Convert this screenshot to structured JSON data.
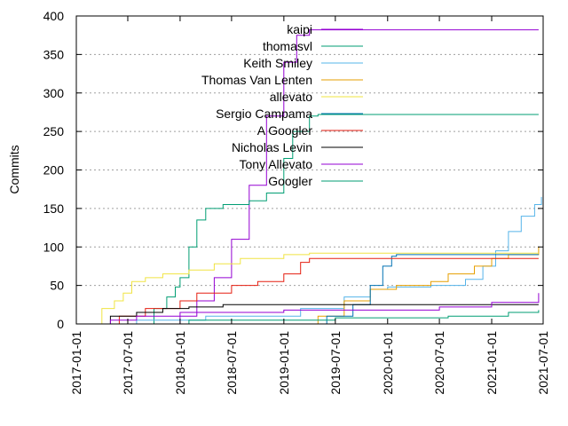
{
  "chart_data": {
    "type": "line",
    "line_shape": "step",
    "title": "",
    "xlabel": "",
    "ylabel": "Commits",
    "x_ticks": [
      "2017-01-01",
      "2017-07-01",
      "2018-01-01",
      "2018-07-01",
      "2019-01-01",
      "2019-07-01",
      "2020-01-01",
      "2020-07-01",
      "2021-01-01",
      "2021-07-01"
    ],
    "y_ticks": [
      0,
      50,
      100,
      150,
      200,
      250,
      300,
      350,
      400
    ],
    "xlim": [
      "2017-01-01",
      "2021-07-01"
    ],
    "ylim": [
      0,
      400
    ],
    "grid": "horizontal dotted",
    "legend_placement": "top-right",
    "series": [
      {
        "name": "kaipi",
        "color": "#9400d3",
        "points": [
          [
            "2017-12-01",
            0
          ],
          [
            "2018-01-01",
            10
          ],
          [
            "2018-03-01",
            30
          ],
          [
            "2018-05-01",
            60
          ],
          [
            "2018-07-01",
            110
          ],
          [
            "2018-09-01",
            180
          ],
          [
            "2018-11-01",
            270
          ],
          [
            "2019-01-01",
            340
          ],
          [
            "2019-02-15",
            375
          ],
          [
            "2019-04-01",
            382
          ],
          [
            "2021-06-15",
            382
          ]
        ]
      },
      {
        "name": "thomasvl",
        "color": "#009e73",
        "points": [
          [
            "2017-09-01",
            0
          ],
          [
            "2017-10-01",
            20
          ],
          [
            "2017-11-15",
            35
          ],
          [
            "2017-12-15",
            48
          ],
          [
            "2018-01-01",
            60
          ],
          [
            "2018-02-01",
            100
          ],
          [
            "2018-03-01",
            135
          ],
          [
            "2018-04-01",
            150
          ],
          [
            "2018-06-01",
            155
          ],
          [
            "2018-09-01",
            160
          ],
          [
            "2018-11-01",
            170
          ],
          [
            "2019-01-01",
            215
          ],
          [
            "2019-02-01",
            250
          ],
          [
            "2019-04-01",
            270
          ],
          [
            "2019-05-01",
            272
          ],
          [
            "2021-06-15",
            272
          ]
        ]
      },
      {
        "name": "Keith Smiley",
        "color": "#56b4e9",
        "points": [
          [
            "2017-02-01",
            0
          ],
          [
            "2017-08-01",
            5
          ],
          [
            "2018-04-01",
            10
          ],
          [
            "2019-03-01",
            20
          ],
          [
            "2019-08-01",
            35
          ],
          [
            "2019-11-01",
            45
          ],
          [
            "2020-01-01",
            48
          ],
          [
            "2020-06-01",
            50
          ],
          [
            "2020-10-01",
            58
          ],
          [
            "2020-12-01",
            75
          ],
          [
            "2021-01-15",
            95
          ],
          [
            "2021-03-01",
            120
          ],
          [
            "2021-04-15",
            140
          ],
          [
            "2021-06-01",
            155
          ],
          [
            "2021-06-25",
            165
          ]
        ]
      },
      {
        "name": "Thomas Van Lenten",
        "color": "#e69f00",
        "points": [
          [
            "2018-01-01",
            0
          ],
          [
            "2019-05-01",
            10
          ],
          [
            "2019-08-01",
            30
          ],
          [
            "2019-11-01",
            45
          ],
          [
            "2020-02-01",
            50
          ],
          [
            "2020-06-01",
            55
          ],
          [
            "2020-08-01",
            65
          ],
          [
            "2020-11-01",
            75
          ],
          [
            "2021-01-01",
            85
          ],
          [
            "2021-03-01",
            90
          ],
          [
            "2021-06-15",
            100
          ]
        ]
      },
      {
        "name": "allevato",
        "color": "#f0e442",
        "points": [
          [
            "2017-03-01",
            0
          ],
          [
            "2017-04-01",
            20
          ],
          [
            "2017-05-15",
            30
          ],
          [
            "2017-06-15",
            40
          ],
          [
            "2017-07-15",
            55
          ],
          [
            "2017-09-01",
            60
          ],
          [
            "2017-11-01",
            65
          ],
          [
            "2018-02-01",
            70
          ],
          [
            "2018-05-01",
            78
          ],
          [
            "2018-08-01",
            85
          ],
          [
            "2019-01-01",
            90
          ],
          [
            "2019-04-01",
            92
          ],
          [
            "2021-06-15",
            92
          ]
        ]
      },
      {
        "name": "Sergio Campama",
        "color": "#0072b2",
        "points": [
          [
            "2019-01-01",
            0
          ],
          [
            "2019-06-01",
            10
          ],
          [
            "2019-09-01",
            25
          ],
          [
            "2019-11-01",
            50
          ],
          [
            "2019-12-15",
            75
          ],
          [
            "2020-01-15",
            88
          ],
          [
            "2020-02-01",
            90
          ],
          [
            "2021-06-15",
            90
          ]
        ]
      },
      {
        "name": "A Googler",
        "color": "#e51e10",
        "points": [
          [
            "2017-03-01",
            0
          ],
          [
            "2017-06-01",
            10
          ],
          [
            "2017-09-01",
            20
          ],
          [
            "2018-01-01",
            30
          ],
          [
            "2018-03-01",
            40
          ],
          [
            "2018-07-01",
            50
          ],
          [
            "2018-10-01",
            55
          ],
          [
            "2019-01-01",
            65
          ],
          [
            "2019-03-01",
            80
          ],
          [
            "2019-04-01",
            85
          ],
          [
            "2021-06-15",
            85
          ]
        ]
      },
      {
        "name": "Nicholas Levin",
        "color": "#000000",
        "points": [
          [
            "2017-04-01",
            0
          ],
          [
            "2017-05-01",
            10
          ],
          [
            "2017-08-01",
            15
          ],
          [
            "2017-11-01",
            20
          ],
          [
            "2018-02-01",
            22
          ],
          [
            "2018-06-01",
            25
          ],
          [
            "2021-06-15",
            25
          ]
        ]
      },
      {
        "name": "Tony Allevato",
        "color": "#9400d3",
        "points": [
          [
            "2017-03-01",
            0
          ],
          [
            "2017-05-01",
            5
          ],
          [
            "2017-08-01",
            10
          ],
          [
            "2018-01-01",
            15
          ],
          [
            "2019-01-01",
            18
          ],
          [
            "2020-07-01",
            22
          ],
          [
            "2021-01-01",
            28
          ],
          [
            "2021-06-15",
            40
          ]
        ]
      },
      {
        "name": "Googler",
        "color": "#009e73",
        "points": [
          [
            "2017-06-01",
            0
          ],
          [
            "2018-02-01",
            5
          ],
          [
            "2019-07-01",
            8
          ],
          [
            "2020-08-01",
            10
          ],
          [
            "2021-03-01",
            15
          ],
          [
            "2021-06-15",
            18
          ]
        ]
      }
    ]
  }
}
